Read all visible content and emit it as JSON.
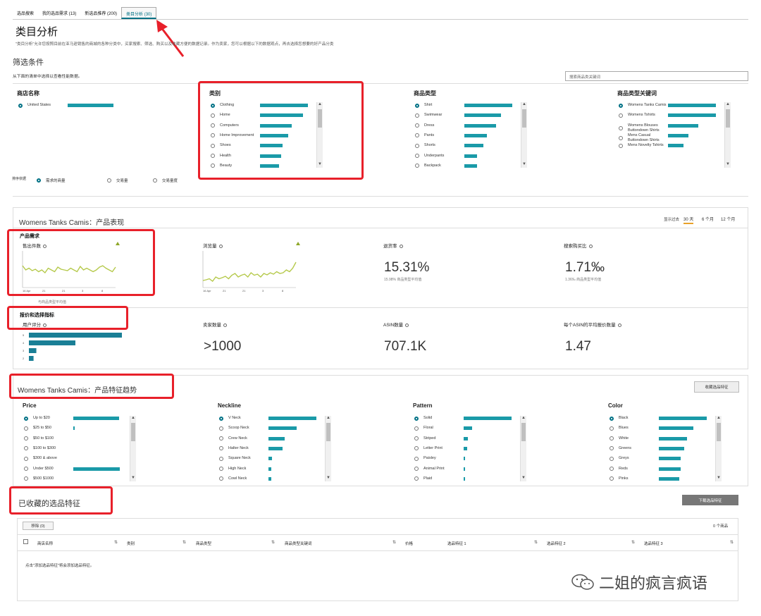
{
  "tabs": [
    "选品搜索",
    "我的选品需求 (13)",
    "新选品推荐 (200)",
    "类目分析 (30)"
  ],
  "page": {
    "title": "类目分析",
    "description": "\"类目分析\"允许您按照目前在亚马逊销售的商城的各种分类中，买家搜索、筛选、购买以及收藏方便的数据记录。作为卖家，您可以根据以下的数据观点，再去选择您想要的好产品分类"
  },
  "filter": {
    "title": "筛选条件",
    "hint": "从下面的清单中选择以查看性能数据。",
    "search_placeholder": "搜索商品类关键词",
    "columns": [
      {
        "title": "商店名称",
        "items": [
          {
            "label": "United States",
            "bar": 0.9,
            "selected": true
          }
        ]
      },
      {
        "title": "类别",
        "items": [
          {
            "label": "Clothing",
            "bar": 0.95,
            "selected": true
          },
          {
            "label": "Home",
            "bar": 0.85
          },
          {
            "label": "Computers",
            "bar": 0.62
          },
          {
            "label": "Home Improvement",
            "bar": 0.55
          },
          {
            "label": "Shoes",
            "bar": 0.45
          },
          {
            "label": "Health",
            "bar": 0.42
          },
          {
            "label": "Beauty",
            "bar": 0.38
          }
        ]
      },
      {
        "title": "商品类型",
        "items": [
          {
            "label": "Shirt",
            "bar": 0.95,
            "selected": true
          },
          {
            "label": "Swimwear",
            "bar": 0.72
          },
          {
            "label": "Dress",
            "bar": 0.62
          },
          {
            "label": "Pants",
            "bar": 0.45
          },
          {
            "label": "Shorts",
            "bar": 0.38
          },
          {
            "label": "Underpants",
            "bar": 0.25
          },
          {
            "label": "Backpack",
            "bar": 0.25
          }
        ]
      },
      {
        "title": "商品类型关键词",
        "items": [
          {
            "label": "Womens Tanks Camis",
            "bar": 0.95,
            "selected": true
          },
          {
            "label": "Womens Tshirts",
            "bar": 0.95
          },
          {
            "label": "Womens Blouses Buttondown Shirts",
            "bar": 0.6
          },
          {
            "label": "Mens Casual Buttondown Shirts",
            "bar": 0.4
          },
          {
            "label": "Mens Novelty Tshirts",
            "bar": 0.3
          }
        ]
      }
    ],
    "sort_label": "排序依据",
    "sort_options": [
      "需求的商量",
      "交易量",
      "交易量度"
    ]
  },
  "performance": {
    "title": "Womens Tanks Camis：产品表现",
    "range_label": "显示过去",
    "ranges": [
      "30 天",
      "6 个月",
      "12 个月"
    ],
    "demand_title": "产品需求",
    "metrics": [
      {
        "label": "售出件数",
        "chart": "units"
      },
      {
        "label": "浏览量",
        "chart": "views"
      },
      {
        "label": "退货率",
        "value": "15.31%",
        "sub": "15.98% 商品类型平均值"
      },
      {
        "label": "搜索购买比",
        "value": "1.71‰",
        "sub": "1.36‰ 商品类型平均值"
      }
    ],
    "x_ticks": [
      "16 Apr",
      "21",
      "21",
      "3",
      "8"
    ],
    "chart_note": "与商品类型平均值",
    "pricing_title": "报价和选择指标",
    "metrics2": [
      {
        "label": "用户评分"
      },
      {
        "label": "卖家数量",
        "value": ">1000"
      },
      {
        "label": "ASIN数量",
        "value": "707.1K"
      },
      {
        "label": "每个ASIN的平均报价数量",
        "value": "1.47"
      }
    ],
    "rating_ticks": [
      "5",
      "4",
      "3",
      "2"
    ]
  },
  "rating_data": {
    "type": "bar",
    "categories": [
      "5",
      "4",
      "3",
      "2"
    ],
    "values": [
      1.0,
      0.5,
      0.08,
      0.05
    ]
  },
  "chart_data": [
    {
      "type": "line",
      "x": [
        0,
        1,
        2,
        3,
        4,
        5,
        6,
        7,
        8,
        9,
        10,
        11,
        12,
        13,
        14,
        15,
        16,
        17,
        18,
        19,
        20,
        21,
        22,
        23,
        24,
        25,
        26,
        27,
        28,
        29
      ],
      "y": [
        0.62,
        0.5,
        0.55,
        0.48,
        0.52,
        0.45,
        0.5,
        0.42,
        0.55,
        0.5,
        0.45,
        0.58,
        0.52,
        0.5,
        0.48,
        0.55,
        0.5,
        0.45,
        0.6,
        0.5,
        0.55,
        0.5,
        0.45,
        0.5,
        0.58,
        0.62,
        0.55,
        0.5,
        0.45,
        0.58
      ]
    },
    {
      "type": "line",
      "x": [
        0,
        1,
        2,
        3,
        4,
        5,
        6,
        7,
        8,
        9,
        10,
        11,
        12,
        13,
        14,
        15,
        16,
        17,
        18,
        19,
        20,
        21,
        22,
        23,
        24,
        25,
        26,
        27,
        28,
        29
      ],
      "y": [
        0.2,
        0.22,
        0.25,
        0.18,
        0.3,
        0.25,
        0.28,
        0.32,
        0.25,
        0.35,
        0.4,
        0.3,
        0.35,
        0.38,
        0.3,
        0.42,
        0.35,
        0.38,
        0.3,
        0.4,
        0.36,
        0.42,
        0.38,
        0.45,
        0.4,
        0.42,
        0.5,
        0.45,
        0.55,
        0.72
      ]
    }
  ],
  "trends": {
    "title": "Womens Tanks Camis：产品特征趋势",
    "save_button": "收藏选品特征",
    "columns": [
      {
        "title": "Price",
        "items": [
          {
            "label": "Up to $20",
            "bar": 0.9,
            "selected": true
          },
          {
            "label": "$25 to $50",
            "bar": 0.03
          },
          {
            "label": "$50 to $100",
            "bar": 0
          },
          {
            "label": "$100 to $300",
            "bar": 0
          },
          {
            "label": "$300 & above",
            "bar": 0
          },
          {
            "label": "Under $500",
            "bar": 0.92
          },
          {
            "label": "$500 $1000",
            "bar": 0
          }
        ]
      },
      {
        "title": "Neckline",
        "items": [
          {
            "label": "V Neck",
            "bar": 0.95,
            "selected": true
          },
          {
            "label": "Scoop Neck",
            "bar": 0.55
          },
          {
            "label": "Crew Neck",
            "bar": 0.32
          },
          {
            "label": "Halter Neck",
            "bar": 0.28
          },
          {
            "label": "Square Neck",
            "bar": 0.07
          },
          {
            "label": "High Neck",
            "bar": 0.06
          },
          {
            "label": "Cowl Neck",
            "bar": 0.06
          }
        ]
      },
      {
        "title": "Pattern",
        "items": [
          {
            "label": "Solid",
            "bar": 0.95,
            "selected": true
          },
          {
            "label": "Floral",
            "bar": 0.17
          },
          {
            "label": "Striped",
            "bar": 0.08
          },
          {
            "label": "Letter Print",
            "bar": 0.07
          },
          {
            "label": "Paisley",
            "bar": 0.03
          },
          {
            "label": "Animal Print",
            "bar": 0.03
          },
          {
            "label": "Plaid",
            "bar": 0.02
          }
        ]
      },
      {
        "title": "Color",
        "items": [
          {
            "label": "Black",
            "bar": 0.95,
            "selected": true
          },
          {
            "label": "Blues",
            "bar": 0.68
          },
          {
            "label": "White",
            "bar": 0.55
          },
          {
            "label": "Greens",
            "bar": 0.5
          },
          {
            "label": "Greys",
            "bar": 0.43
          },
          {
            "label": "Reds",
            "bar": 0.43
          },
          {
            "label": "Pinks",
            "bar": 0.4
          }
        ]
      }
    ]
  },
  "saved": {
    "title": "已收藏的选品特征",
    "download_button": "下载选品特征",
    "delete_button": "移除 (0)",
    "count": "0 个商品",
    "headers": [
      "商店名称",
      "类别",
      "商品类型",
      "商品类型关键词",
      "价格",
      "选品特征 1",
      "选品特征 2",
      "选品特征 3"
    ],
    "empty": "点击\"添加选品特征\"将会添加选品特征。"
  },
  "watermark": "二姐的疯言疯语",
  "colors": {
    "accent": "#007185",
    "bar": "#1a9aa8",
    "line": "#b5c94a",
    "highlight": "#e8202a"
  }
}
